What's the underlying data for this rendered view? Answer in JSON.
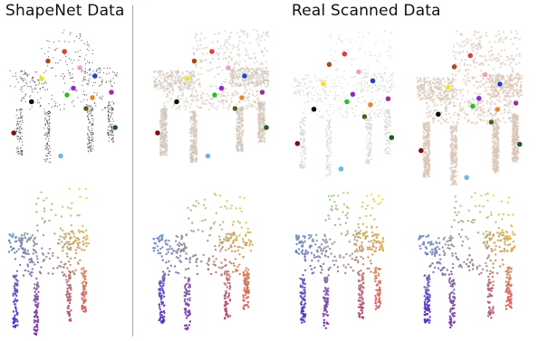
{
  "titles": {
    "shapenet": "ShapeNet Data",
    "real": "Real Scanned Data"
  },
  "colors": {
    "shapenet_points": "#3a3a3a",
    "scan_surface": "#cfc2b6",
    "divider": "#9aa9b8",
    "keypoints": [
      "#e33b3b",
      "#f2e21d",
      "#1f3fcc",
      "#0b0b0b",
      "#2bbd2b",
      "#e6862a",
      "#a42d9b",
      "#7b0e12",
      "#1d5b22",
      "#6db7e8",
      "#f49ac1",
      "#a84d1a",
      "#5b5b1a",
      "#8a2bd1"
    ]
  },
  "figure": {
    "rows": [
      "keypoint-annotation",
      "part-segmentation-coloring"
    ],
    "columns": [
      "shapenet-chair",
      "scan-chair-1",
      "scan-chair-2",
      "scan-chair-3"
    ]
  }
}
